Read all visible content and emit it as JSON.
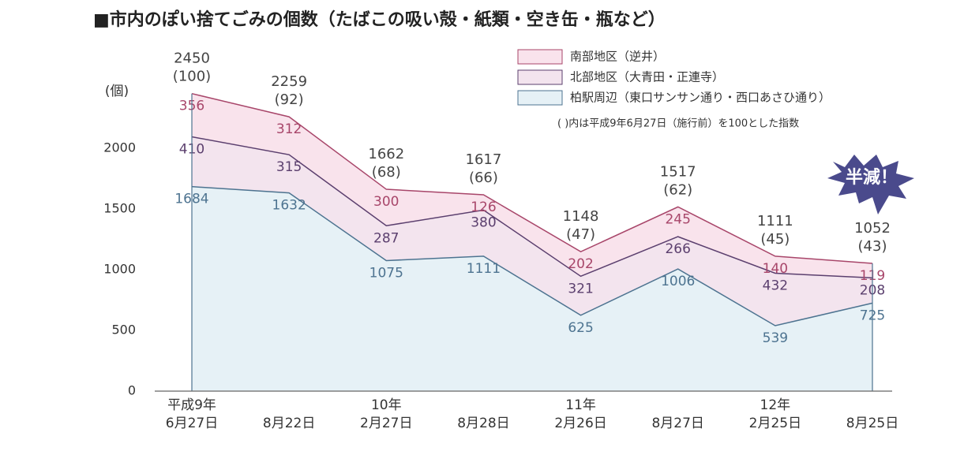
{
  "chart_data": {
    "type": "stacked-area",
    "title": "■市内のぽい捨てごみの個数（たばこの吸い殻・紙類・空き缶・瓶など）",
    "y_label": "(個)",
    "note": "( )内は平成9年6月27日（施行前）を100とした指数",
    "annotation": "半減！",
    "categories": [
      [
        "平成9年",
        "6月27日"
      ],
      [
        "8月22日"
      ],
      [
        "10年",
        "2月27日"
      ],
      [
        "8月28日"
      ],
      [
        "11年",
        "2月26日"
      ],
      [
        "8月27日"
      ],
      [
        "12年",
        "2月25日"
      ],
      [
        "8月25日"
      ]
    ],
    "series": [
      {
        "name": "柏駅周辺（東口サンサン通り・西口あさひ通り）",
        "color": "#4d7390",
        "fill": "#e6f1f6",
        "values": [
          1684,
          1632,
          1075,
          1111,
          625,
          1006,
          539,
          725
        ]
      },
      {
        "name": "北部地区（大青田・正連寺）",
        "color": "#5b3f6e",
        "fill": "#f3e4ee",
        "values": [
          410,
          315,
          287,
          380,
          321,
          266,
          432,
          208
        ]
      },
      {
        "name": "南部地区（逆井）",
        "color": "#a8466a",
        "fill": "#f9e3ec",
        "values": [
          356,
          312,
          300,
          126,
          202,
          245,
          140,
          119
        ]
      }
    ],
    "totals": [
      2450,
      2259,
      1662,
      1617,
      1148,
      1517,
      1111,
      1052
    ],
    "index_values": [
      100,
      92,
      68,
      66,
      47,
      62,
      45,
      43
    ],
    "index_labels": [
      "(100)",
      "(92)",
      "(68)",
      "(66)",
      "(47)",
      "(62)",
      "(45)",
      "(43)"
    ],
    "ylim": [
      0,
      2500
    ],
    "yticks": [
      0,
      500,
      1000,
      1500,
      2000
    ]
  }
}
